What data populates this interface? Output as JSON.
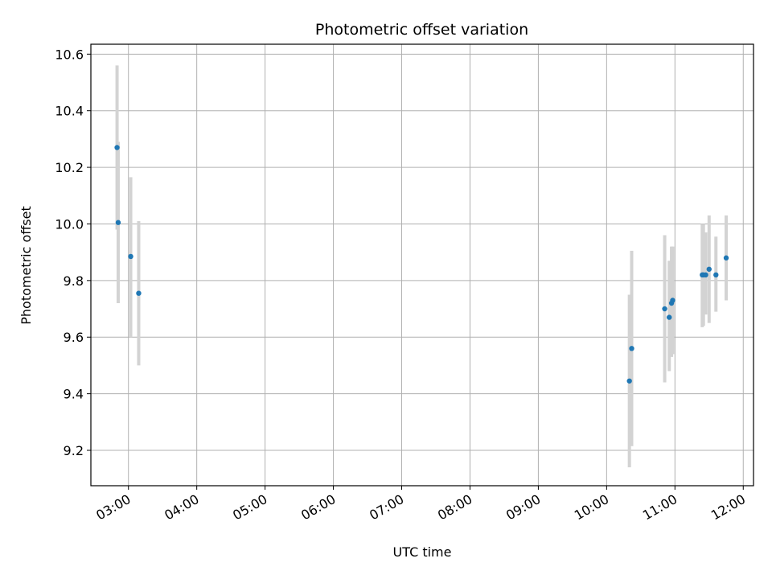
{
  "chart_data": {
    "type": "scatter",
    "title": "Photometric offset variation",
    "xlabel": "UTC time",
    "ylabel": "Photometric offset",
    "xlim": [
      "02:27",
      "12:09"
    ],
    "ylim": [
      9.075,
      10.635
    ],
    "x_ticks": [
      "03:00",
      "04:00",
      "05:00",
      "06:00",
      "07:00",
      "08:00",
      "09:00",
      "10:00",
      "11:00",
      "12:00"
    ],
    "y_ticks": [
      9.2,
      9.4,
      9.6,
      9.8,
      10.0,
      10.2,
      10.4,
      10.6
    ],
    "grid": true,
    "marker_color": "#1f77b4",
    "errorbar_color": "#d3d3d3",
    "points": [
      {
        "time": "02:50",
        "y": 10.27,
        "ylow": 9.98,
        "yhigh": 10.56
      },
      {
        "time": "02:51",
        "y": 10.005,
        "ylow": 9.72,
        "yhigh": 10.29
      },
      {
        "time": "03:02",
        "y": 9.885,
        "ylow": 9.6,
        "yhigh": 10.165
      },
      {
        "time": "03:09",
        "y": 9.755,
        "ylow": 9.5,
        "yhigh": 10.01
      },
      {
        "time": "10:20",
        "y": 9.445,
        "ylow": 9.14,
        "yhigh": 9.75
      },
      {
        "time": "10:22",
        "y": 9.56,
        "ylow": 9.215,
        "yhigh": 9.905
      },
      {
        "time": "10:51",
        "y": 9.7,
        "ylow": 9.44,
        "yhigh": 9.96
      },
      {
        "time": "10:55",
        "y": 9.67,
        "ylow": 9.48,
        "yhigh": 9.87
      },
      {
        "time": "10:57",
        "y": 9.72,
        "ylow": 9.53,
        "yhigh": 9.92
      },
      {
        "time": "10:58",
        "y": 9.73,
        "ylow": 9.54,
        "yhigh": 9.92
      },
      {
        "time": "11:24",
        "y": 9.82,
        "ylow": 9.635,
        "yhigh": 10.0
      },
      {
        "time": "11:25",
        "y": 9.82,
        "ylow": 9.64,
        "yhigh": 10.0
      },
      {
        "time": "11:27",
        "y": 9.82,
        "ylow": 9.68,
        "yhigh": 9.97
      },
      {
        "time": "11:30",
        "y": 9.84,
        "ylow": 9.65,
        "yhigh": 10.03
      },
      {
        "time": "11:36",
        "y": 9.82,
        "ylow": 9.69,
        "yhigh": 9.955
      },
      {
        "time": "11:45",
        "y": 9.88,
        "ylow": 9.73,
        "yhigh": 10.03
      }
    ]
  }
}
